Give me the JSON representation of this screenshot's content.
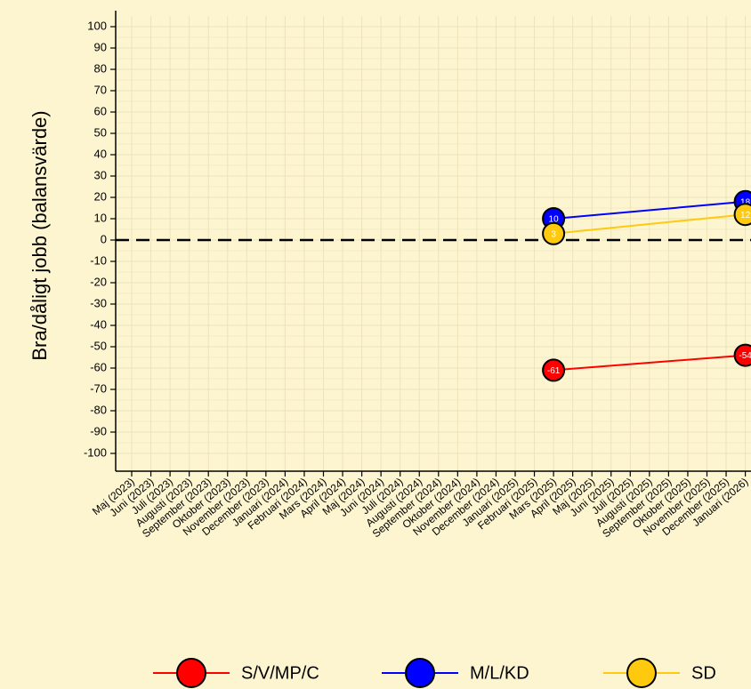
{
  "chart_data": {
    "type": "line",
    "ylabel": "Bra/dåligt jobb (balansvärde)",
    "ylim": [
      -100,
      100
    ],
    "yticks": [
      100,
      90,
      80,
      70,
      60,
      50,
      40,
      30,
      20,
      10,
      0,
      -10,
      -20,
      -30,
      -40,
      -50,
      -60,
      -70,
      -80,
      -90,
      -100
    ],
    "categories": [
      "Maj (2023)",
      "Juni (2023)",
      "Juli (2023)",
      "Augusti (2023)",
      "September (2023)",
      "Oktober (2023)",
      "November (2023)",
      "December (2023)",
      "Januari (2024)",
      "Februari (2024)",
      "Mars (2024)",
      "April (2024)",
      "Maj (2024)",
      "Juni (2024)",
      "Juli (2024)",
      "Augusti (2024)",
      "September (2024)",
      "Oktober (2024)",
      "November (2024)",
      "December (2024)",
      "Januari (2025)",
      "Februari (2025)",
      "Mars (2025)",
      "April (2025)",
      "Maj (2025)",
      "Juni (2025)",
      "Juli (2025)",
      "Augusti (2025)",
      "September (2025)",
      "Oktober (2025)",
      "November (2025)",
      "December (2025)",
      "Januari (2026)"
    ],
    "grid": true,
    "reference_line": 0,
    "legend_position": "bottom",
    "series": [
      {
        "name": "S/V/MP/C",
        "color": "#ff0000",
        "points": [
          {
            "x": "Mars (2025)",
            "y": -61
          },
          {
            "x": "Januari (2026)",
            "y": -54
          }
        ]
      },
      {
        "name": "M/L/KD",
        "color": "#0000ff",
        "points": [
          {
            "x": "Mars (2025)",
            "y": 10
          },
          {
            "x": "Januari (2026)",
            "y": 18
          }
        ]
      },
      {
        "name": "SD",
        "color": "#ffc90e",
        "points": [
          {
            "x": "Mars (2025)",
            "y": 3
          },
          {
            "x": "Januari (2026)",
            "y": 12
          }
        ]
      }
    ]
  }
}
